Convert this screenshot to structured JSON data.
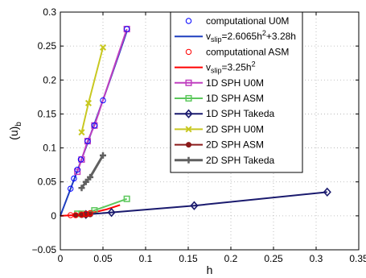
{
  "chart_data": {
    "type": "line",
    "xlabel": "h",
    "ylabel": "(u)",
    "ylabel_sub": "b",
    "xlim": [
      0,
      0.35
    ],
    "ylim": [
      -0.05,
      0.3
    ],
    "xticks": [
      "0",
      "0.05",
      "0.1",
      "0.15",
      "0.2",
      "0.25",
      "0.3",
      "0.35"
    ],
    "yticks": [
      "−0.05",
      "0",
      "0.05",
      "0.1",
      "0.15",
      "0.2",
      "0.25",
      "0.3"
    ],
    "grid": "dotted",
    "legend_position": "top-right",
    "series": [
      {
        "name": "computational U0M",
        "style": "markers",
        "marker": "circle",
        "color": "#0000ff",
        "x": [
          0.012,
          0.016,
          0.02,
          0.024,
          0.032,
          0.04,
          0.05,
          0.078
        ],
        "y": [
          0.04,
          0.055,
          0.068,
          0.083,
          0.11,
          0.133,
          0.17,
          0.275
        ]
      },
      {
        "name": "v_slip=2.6065h^2+3.28h",
        "style": "line",
        "color": "#1f3fbf",
        "x": [
          0,
          0.01,
          0.02,
          0.03,
          0.04,
          0.05,
          0.06,
          0.07,
          0.078
        ],
        "y": [
          0,
          0.0331,
          0.0666,
          0.1007,
          0.1354,
          0.1705,
          0.2062,
          0.2424,
          0.2717
        ]
      },
      {
        "name": "computational ASM",
        "style": "markers",
        "marker": "circle",
        "color": "#ff0000",
        "x": [
          0.012,
          0.018,
          0.025,
          0.03,
          0.035
        ],
        "y": [
          0.001,
          0.001,
          0.002,
          0.003,
          0.004
        ]
      },
      {
        "name": "v_slip=3.25h^2",
        "style": "line",
        "color": "#ff0000",
        "x": [
          0,
          0.02,
          0.04,
          0.055,
          0.07
        ],
        "y": [
          0,
          0.0013,
          0.0052,
          0.0098,
          0.0159
        ]
      },
      {
        "name": "1D SPH U0M",
        "style": "line-markers",
        "marker": "square",
        "color": "#c040c0",
        "x": [
          0.02,
          0.025,
          0.032,
          0.04,
          0.078
        ],
        "y": [
          0.065,
          0.083,
          0.11,
          0.133,
          0.275
        ]
      },
      {
        "name": "1D SPH ASM",
        "style": "line-markers",
        "marker": "square",
        "color": "#5cc85c",
        "x": [
          0.02,
          0.025,
          0.04,
          0.078
        ],
        "y": [
          0.003,
          0.003,
          0.008,
          0.025
        ]
      },
      {
        "name": "1D SPH Takeda",
        "style": "line-markers",
        "marker": "diamond",
        "color": "#1a1a6e",
        "x": [
          0.03,
          0.06,
          0.157,
          0.313
        ],
        "y": [
          0.002,
          0.005,
          0.015,
          0.035
        ]
      },
      {
        "name": "2D SPH U0M",
        "style": "line-markers",
        "marker": "x",
        "color": "#c8c820",
        "x": [
          0.025,
          0.033,
          0.05
        ],
        "y": [
          0.123,
          0.166,
          0.248
        ]
      },
      {
        "name": "2D SPH ASM",
        "style": "line-markers",
        "marker": "dot",
        "color": "#8b1a1a",
        "x": [
          0.018,
          0.025,
          0.03,
          0.035
        ],
        "y": [
          0.001,
          0.001,
          0.001,
          0.002
        ]
      },
      {
        "name": "2D SPH Takeda",
        "style": "line-markers",
        "marker": "plus",
        "color": "#606060",
        "x": [
          0.025,
          0.03,
          0.035,
          0.05
        ],
        "y": [
          0.041,
          0.05,
          0.057,
          0.089
        ]
      }
    ],
    "legend": [
      {
        "kind": "marker",
        "marker": "circle",
        "color": "#0000ff",
        "text": "computational U0M"
      },
      {
        "kind": "line",
        "color": "#1f3fbf",
        "text": "v",
        "sub": "slip",
        "rest": "=2.6065h",
        "sup": "2",
        "rest2": "+3.28h"
      },
      {
        "kind": "marker",
        "marker": "circle",
        "color": "#ff0000",
        "text": "computational ASM"
      },
      {
        "kind": "line",
        "color": "#ff0000",
        "text": "v",
        "sub": "slip",
        "rest": "=3.25h",
        "sup": "2",
        "rest2": ""
      },
      {
        "kind": "line-marker",
        "marker": "square",
        "color": "#c040c0",
        "text": "1D SPH U0M"
      },
      {
        "kind": "line-marker",
        "marker": "square",
        "color": "#5cc85c",
        "text": "1D SPH ASM"
      },
      {
        "kind": "line-marker",
        "marker": "diamond",
        "color": "#1a1a6e",
        "text": "1D SPH Takeda"
      },
      {
        "kind": "line-marker",
        "marker": "x",
        "color": "#c8c820",
        "text": "2D SPH U0M"
      },
      {
        "kind": "line-marker",
        "marker": "dot",
        "color": "#8b1a1a",
        "text": "2D SPH ASM"
      },
      {
        "kind": "line-marker",
        "marker": "plus",
        "color": "#606060",
        "text": "2D SPH Takeda"
      }
    ]
  }
}
